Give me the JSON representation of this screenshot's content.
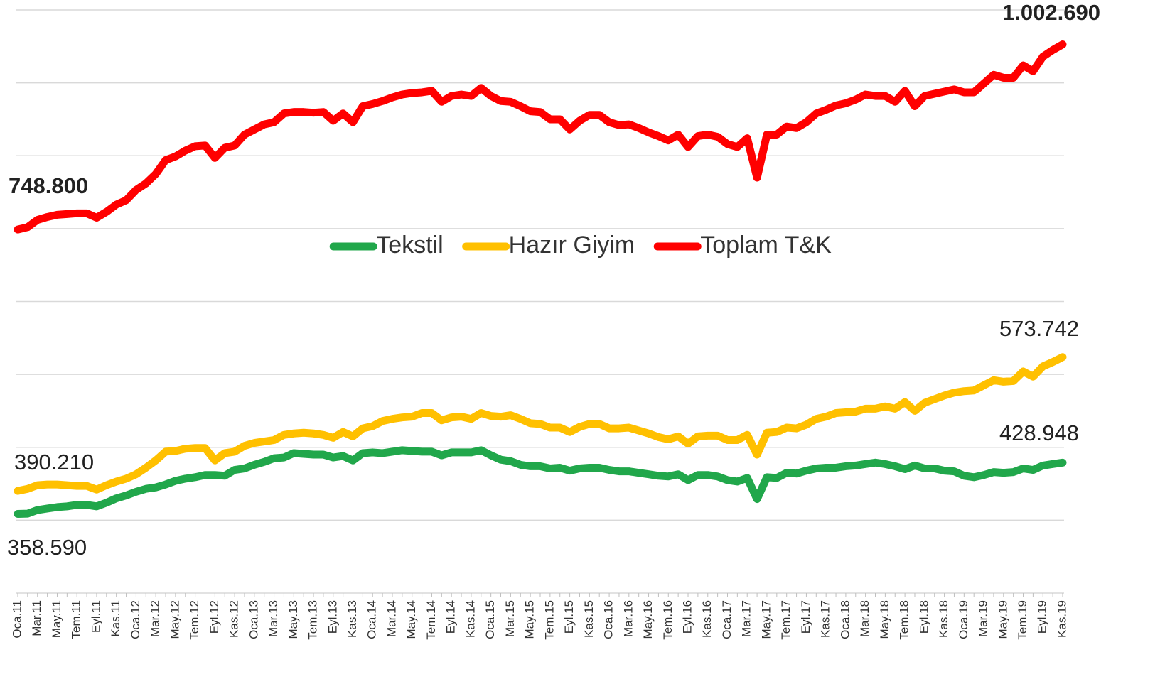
{
  "chart_data": {
    "type": "line",
    "categories": [
      "Oca.11",
      null,
      "Mar.11",
      null,
      "May.11",
      null,
      "Tem.11",
      null,
      "Eyl.11",
      null,
      "Kas.11",
      null,
      "Oca.12",
      null,
      "Mar.12",
      null,
      "May.12",
      null,
      "Tem.12",
      null,
      "Eyl.12",
      null,
      "Kas.12",
      null,
      "Oca.13",
      null,
      "Mar.13",
      null,
      "May.13",
      null,
      "Tem.13",
      null,
      "Eyl.13",
      null,
      "Kas.13",
      null,
      "Oca.14",
      null,
      "Mar.14",
      null,
      "May.14",
      null,
      "Tem.14",
      null,
      "Eyl.14",
      null,
      "Kas.14",
      null,
      "Oca.15",
      null,
      "Mar.15",
      null,
      "May.15",
      null,
      "Tem.15",
      null,
      "Eyl.15",
      null,
      "Kas.15",
      null,
      "Oca.16",
      null,
      "Mar.16",
      null,
      "May.16",
      null,
      "Tem.16",
      null,
      "Eyl.16",
      null,
      "Kas.16",
      null,
      "Oca.17",
      null,
      "Mar.17",
      null,
      "May.17",
      null,
      "Tem.17",
      null,
      "Eyl.17",
      null,
      "Kas.17",
      null,
      "Oca.18",
      null,
      "Mar.18",
      null,
      "May.18",
      null,
      "Tem.18",
      null,
      "Eyl.18",
      null,
      "Kas.18",
      null,
      "Oca.19",
      null,
      "Mar.19",
      null,
      "May.19",
      null,
      "Tem.19",
      null,
      "Eyl.19",
      null,
      "Kas.19"
    ],
    "series": [
      {
        "name": "Tekstil",
        "color": "#21a74b",
        "values": [
          358590,
          359000,
          364000,
          366000,
          368000,
          369000,
          371000,
          371000,
          369000,
          374000,
          380000,
          384000,
          389000,
          393000,
          395000,
          399000,
          404000,
          407000,
          409000,
          412000,
          412000,
          411000,
          419000,
          421000,
          426000,
          430000,
          435000,
          436000,
          442000,
          441000,
          440000,
          440000,
          436000,
          438000,
          432000,
          442000,
          443000,
          442000,
          444000,
          446000,
          445000,
          444000,
          444000,
          439000,
          443000,
          443000,
          443000,
          446000,
          439000,
          433000,
          431000,
          426000,
          424000,
          424000,
          421000,
          422000,
          418000,
          421000,
          422000,
          422000,
          419000,
          417000,
          417000,
          415000,
          413000,
          411000,
          410000,
          413000,
          405000,
          412000,
          412000,
          410000,
          405000,
          403000,
          408000,
          379000,
          409000,
          408000,
          415000,
          414000,
          418000,
          421000,
          422000,
          422000,
          424000,
          425000,
          427000,
          429000,
          427000,
          424000,
          420000,
          425000,
          421000,
          421000,
          418000,
          417000,
          411000,
          409000,
          412000,
          416000,
          415000,
          416000,
          421000,
          419000,
          425000,
          427000,
          428948
        ],
        "value_labels": [
          "358.590",
          null,
          null,
          null,
          null,
          null,
          null,
          null,
          null,
          null,
          null,
          null,
          null,
          null,
          null,
          null,
          null,
          null,
          null,
          null,
          null,
          null,
          null,
          null,
          null,
          null,
          null,
          null,
          null,
          null,
          null,
          null,
          null,
          null,
          null,
          null,
          null,
          null,
          null,
          null,
          null,
          null,
          null,
          null,
          null,
          null,
          null,
          null,
          null,
          null,
          null,
          null,
          null,
          null,
          null,
          null,
          null,
          null,
          null,
          null,
          null,
          null,
          null,
          null,
          null,
          null,
          null,
          null,
          null,
          null,
          null,
          null,
          null,
          null,
          null,
          null,
          null,
          null,
          null,
          null,
          null,
          null,
          null,
          null,
          null,
          null,
          null,
          null,
          null,
          null,
          null,
          null,
          null,
          null,
          null,
          null,
          null,
          null,
          null,
          null,
          null,
          null,
          null,
          null,
          null,
          null,
          "428.948"
        ]
      },
      {
        "name": "Hazır Giyim",
        "color": "#ffc000",
        "values": [
          390210,
          393000,
          398000,
          399000,
          399000,
          398000,
          397000,
          397000,
          392000,
          398000,
          403000,
          407000,
          413000,
          422000,
          432000,
          444000,
          445000,
          448000,
          449000,
          449000,
          432000,
          442000,
          444000,
          452000,
          456000,
          458000,
          460000,
          467000,
          469000,
          470000,
          469000,
          467000,
          463000,
          471000,
          465000,
          476000,
          479000,
          486000,
          489000,
          491000,
          492000,
          497000,
          497000,
          487000,
          491000,
          492000,
          489000,
          497000,
          493000,
          492000,
          494000,
          489000,
          483000,
          482000,
          477000,
          477000,
          471000,
          478000,
          482000,
          482000,
          476000,
          476000,
          477000,
          473000,
          469000,
          464000,
          461000,
          465000,
          455000,
          465000,
          466000,
          466000,
          460000,
          460000,
          467000,
          440000,
          470000,
          471000,
          477000,
          476000,
          481000,
          489000,
          492000,
          497000,
          498000,
          499000,
          503000,
          503000,
          506000,
          503000,
          512000,
          500000,
          511000,
          516000,
          521000,
          525000,
          527000,
          528000,
          535000,
          542000,
          540000,
          541000,
          554000,
          547000,
          561000,
          567000,
          573742
        ],
        "value_labels": [
          "390.210",
          null,
          null,
          null,
          null,
          null,
          null,
          null,
          null,
          null,
          null,
          null,
          null,
          null,
          null,
          null,
          null,
          null,
          null,
          null,
          null,
          null,
          null,
          null,
          null,
          null,
          null,
          null,
          null,
          null,
          null,
          null,
          null,
          null,
          null,
          null,
          null,
          null,
          null,
          null,
          null,
          null,
          null,
          null,
          null,
          null,
          null,
          null,
          null,
          null,
          null,
          null,
          null,
          null,
          null,
          null,
          null,
          null,
          null,
          null,
          null,
          null,
          null,
          null,
          null,
          null,
          null,
          null,
          null,
          null,
          null,
          null,
          null,
          null,
          null,
          null,
          null,
          null,
          null,
          null,
          null,
          null,
          null,
          null,
          null,
          null,
          null,
          null,
          null,
          null,
          null,
          null,
          null,
          null,
          null,
          null,
          null,
          null,
          null,
          null,
          null,
          null,
          null,
          null,
          null,
          null,
          "573.742"
        ]
      },
      {
        "name": "Toplam T&K",
        "color": "#ff0000",
        "values": [
          748800,
          752000,
          762000,
          766000,
          769000,
          770000,
          771000,
          771000,
          765000,
          773000,
          783000,
          789000,
          803000,
          812000,
          825000,
          844000,
          849000,
          857000,
          863000,
          864000,
          847000,
          861000,
          864000,
          879000,
          886000,
          893000,
          896000,
          908000,
          910000,
          910000,
          909000,
          910000,
          898000,
          908000,
          896000,
          918000,
          921000,
          925000,
          930000,
          934000,
          936000,
          937000,
          939000,
          924000,
          932000,
          934000,
          932000,
          943000,
          932000,
          925000,
          924000,
          918000,
          911000,
          910000,
          900000,
          900000,
          886000,
          898000,
          906000,
          906000,
          896000,
          892000,
          893000,
          888000,
          882000,
          877000,
          871000,
          879000,
          862000,
          877000,
          879000,
          876000,
          866000,
          862000,
          874000,
          820000,
          879000,
          879000,
          890000,
          888000,
          896000,
          908000,
          913000,
          919000,
          922000,
          927000,
          934000,
          932000,
          932000,
          924000,
          939000,
          918000,
          932000,
          935000,
          938000,
          941000,
          937000,
          937000,
          949000,
          961000,
          957000,
          957000,
          974000,
          966000,
          986000,
          995000,
          1002690
        ],
        "value_labels": [
          "748.800",
          null,
          null,
          null,
          null,
          null,
          null,
          null,
          null,
          null,
          null,
          null,
          null,
          null,
          null,
          null,
          null,
          null,
          null,
          null,
          null,
          null,
          null,
          null,
          null,
          null,
          null,
          null,
          null,
          null,
          null,
          null,
          null,
          null,
          null,
          null,
          null,
          null,
          null,
          null,
          null,
          null,
          null,
          null,
          null,
          null,
          null,
          null,
          null,
          null,
          null,
          null,
          null,
          null,
          null,
          null,
          null,
          null,
          null,
          null,
          null,
          null,
          null,
          null,
          null,
          null,
          null,
          null,
          null,
          null,
          null,
          null,
          null,
          null,
          null,
          null,
          null,
          null,
          null,
          null,
          null,
          null,
          null,
          null,
          null,
          null,
          null,
          null,
          null,
          null,
          null,
          null,
          null,
          null,
          null,
          null,
          null,
          null,
          null,
          null,
          null,
          null,
          null,
          null,
          null,
          null,
          "1.002.690"
        ]
      }
    ],
    "ylim": [
      250000,
      1050000
    ],
    "yticks": [
      250000,
      350000,
      450000,
      550000,
      650000,
      750000,
      850000,
      950000,
      1050000
    ],
    "grid": true,
    "legend": "center"
  }
}
